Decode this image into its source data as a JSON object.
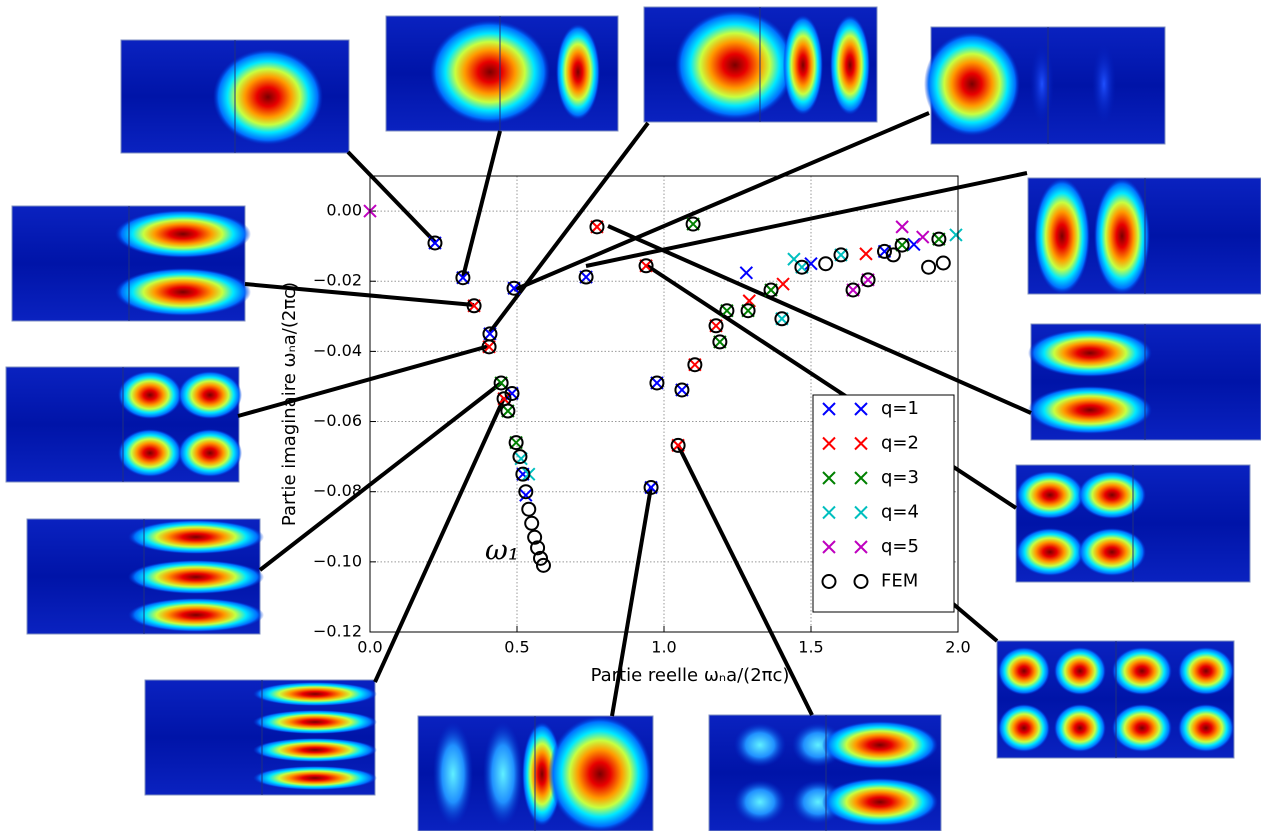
{
  "chart_data": {
    "type": "scatter",
    "xlabel": "Partie reelle ωₙa/(2πc)",
    "ylabel": "Partie imaginaire ωₙa/(2πc)",
    "annotation": "ω₁",
    "xlim": [
      0,
      2
    ],
    "ylim": [
      -0.12,
      0.01
    ],
    "xticks": [
      {
        "value": 0,
        "label": "0.0"
      },
      0.5,
      {
        "value": 1,
        "label": "1.0"
      },
      1.5,
      {
        "value": 2,
        "label": "2.0"
      }
    ],
    "yticks": [
      {
        "value": 0,
        "label": "0.00"
      },
      {
        "value": -0.02,
        "label": "−0.02"
      },
      {
        "value": -0.04,
        "label": "−0.04"
      },
      {
        "value": -0.06,
        "label": "−0.06"
      },
      {
        "value": -0.08,
        "label": "−0.08"
      },
      {
        "value": -0.1,
        "label": "−0.10"
      },
      {
        "value": -0.12,
        "label": "−0.12"
      }
    ],
    "grid": true,
    "legend": "lower right",
    "series": [
      {
        "name": "q=1",
        "color": "#0000ff",
        "marker": "x",
        "x": [
          0.221,
          0.316,
          0.49,
          0.408,
          0.483,
          0.735,
          0.976,
          1.061,
          0.956,
          0.52,
          0.53,
          1.28,
          1.5,
          1.75,
          1.85
        ],
        "y": [
          -0.0091,
          -0.019,
          -0.022,
          -0.035,
          -0.052,
          -0.0188,
          -0.049,
          -0.051,
          -0.0788,
          -0.075,
          -0.081,
          -0.0176,
          -0.015,
          -0.0115,
          -0.0095
        ]
      },
      {
        "name": "q=2",
        "color": "#ff0000",
        "marker": "x",
        "x": [
          0.772,
          0.939,
          0.354,
          0.405,
          0.456,
          1.105,
          1.048,
          1.177,
          1.29,
          1.405,
          1.687
        ],
        "y": [
          -0.0045,
          -0.0156,
          -0.027,
          -0.0387,
          -0.0535,
          -0.0438,
          -0.0668,
          -0.0327,
          -0.0256,
          -0.0208,
          -0.0122
        ]
      },
      {
        "name": "q=3",
        "color": "#008000",
        "marker": "x",
        "x": [
          1.099,
          0.446,
          0.469,
          0.497,
          1.19,
          1.214,
          1.286,
          1.364,
          1.81,
          1.935
        ],
        "y": [
          -0.0037,
          -0.049,
          -0.057,
          -0.066,
          -0.0373,
          -0.0284,
          -0.0284,
          -0.0225,
          -0.0097,
          -0.008
        ]
      },
      {
        "name": "q=4",
        "color": "#00bfbf",
        "marker": "x",
        "x": [
          0.514,
          0.54,
          1.401,
          1.442,
          1.469,
          1.602,
          1.993
        ],
        "y": [
          -0.0706,
          -0.075,
          -0.0307,
          -0.0137,
          -0.016,
          -0.0125,
          -0.0068
        ]
      },
      {
        "name": "q=5",
        "color": "#bf00bf",
        "marker": "x",
        "x": [
          0,
          1.643,
          1.694,
          1.81,
          1.88
        ],
        "y": [
          0,
          -0.0225,
          -0.0196,
          -0.0045,
          -0.0074
        ]
      },
      {
        "name": "FEM",
        "color": "#000000",
        "marker": "o",
        "x": [
          0.221,
          0.316,
          0.354,
          0.408,
          0.405,
          0.49,
          0.446,
          0.456,
          0.483,
          0.469,
          0.497,
          0.735,
          0.772,
          0.939,
          1.099,
          0.976,
          1.061,
          1.105,
          1.048,
          0.956,
          1.177,
          1.19,
          1.214,
          1.286,
          1.364,
          1.401,
          1.469,
          1.55,
          1.602,
          1.643,
          1.694,
          1.75,
          1.78,
          1.81,
          1.9,
          1.95,
          1.935,
          0.51,
          0.52,
          0.53,
          0.54,
          0.55,
          0.56,
          0.57,
          0.58,
          0.59
        ],
        "y": [
          -0.0091,
          -0.019,
          -0.027,
          -0.035,
          -0.0387,
          -0.022,
          -0.049,
          -0.0535,
          -0.052,
          -0.057,
          -0.066,
          -0.0188,
          -0.0045,
          -0.0156,
          -0.0037,
          -0.049,
          -0.051,
          -0.0438,
          -0.0668,
          -0.0788,
          -0.0327,
          -0.0373,
          -0.0284,
          -0.0284,
          -0.0225,
          -0.0307,
          -0.016,
          -0.015,
          -0.0125,
          -0.0225,
          -0.0196,
          -0.0115,
          -0.0125,
          -0.0097,
          -0.016,
          -0.0148,
          -0.008,
          -0.07,
          -0.075,
          -0.08,
          -0.085,
          -0.089,
          -0.093,
          -0.096,
          -0.099,
          -0.101
        ]
      }
    ]
  }
}
